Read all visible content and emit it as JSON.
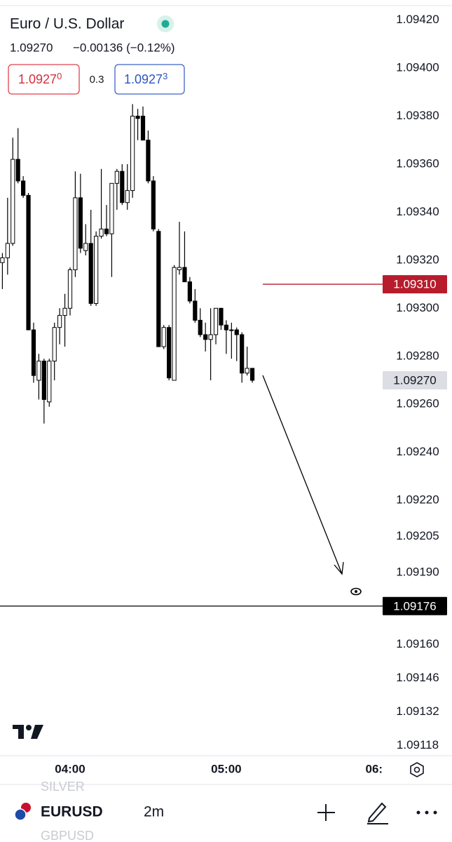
{
  "header": {
    "title": "Euro / U.S. Dollar",
    "last": "1.09270",
    "change": "−0.00136 (−0.12%)",
    "sell": {
      "price": "1.0927",
      "pip": "0"
    },
    "spread": "0.3",
    "buy": {
      "price": "1.0927",
      "pip": "3"
    }
  },
  "chart_data": {
    "type": "candlestick",
    "x": [
      "03:34",
      "03:36",
      "03:38",
      "03:40",
      "03:42",
      "03:44",
      "03:46",
      "03:48",
      "03:50",
      "03:52",
      "03:54",
      "03:56",
      "03:58",
      "04:00",
      "04:02",
      "04:04",
      "04:06",
      "04:08",
      "04:10",
      "04:12",
      "04:14",
      "04:16",
      "04:18",
      "04:20",
      "04:22",
      "04:24",
      "04:26",
      "04:28",
      "04:30",
      "04:32",
      "04:34",
      "04:36",
      "04:38",
      "04:40",
      "04:42",
      "04:44",
      "04:46",
      "04:48",
      "04:50",
      "04:52",
      "04:54",
      "04:56",
      "04:58",
      "05:00",
      "05:02",
      "05:04",
      "05:06",
      "05:08",
      "05:10"
    ],
    "open": [
      1.09319,
      1.09321,
      1.09327,
      1.09362,
      1.09353,
      1.09347,
      1.09291,
      1.0927,
      1.09278,
      1.09261,
      1.09278,
      1.09292,
      1.09297,
      1.093,
      1.09316,
      1.09346,
      1.09324,
      1.09327,
      1.09302,
      1.0933,
      1.09333,
      1.09331,
      1.09352,
      1.09357,
      1.09344,
      1.09349,
      1.0938,
      1.0938,
      1.0937,
      1.09353,
      1.09332,
      1.09284,
      1.09292,
      1.0927,
      1.09316,
      1.09317,
      1.09311,
      1.09303,
      1.09295,
      1.09289,
      1.09287,
      1.09289,
      1.093,
      1.09293,
      1.09291,
      1.09291,
      1.09289,
      1.09273,
      1.09275
    ],
    "high": [
      1.09323,
      1.09346,
      1.09371,
      1.09375,
      1.09355,
      1.09348,
      1.09294,
      1.09281,
      1.09279,
      1.09279,
      1.09294,
      1.093,
      1.09306,
      1.09317,
      1.09357,
      1.09356,
      1.09335,
      1.09341,
      1.09332,
      1.09358,
      1.09343,
      1.09352,
      1.09358,
      1.0936,
      1.0936,
      1.09385,
      1.09383,
      1.09384,
      1.09374,
      1.09355,
      1.09333,
      1.09293,
      1.09293,
      1.09318,
      1.09336,
      1.09332,
      1.09313,
      1.09308,
      1.093,
      1.09294,
      1.093,
      1.093,
      1.093,
      1.09295,
      1.09294,
      1.09292,
      1.0929,
      1.09284,
      1.09275
    ],
    "low": [
      1.09308,
      1.09314,
      1.09326,
      1.09352,
      1.09346,
      1.09291,
      1.09269,
      1.09262,
      1.09252,
      1.09259,
      1.0927,
      1.09285,
      1.09284,
      1.09297,
      1.09313,
      1.09323,
      1.09322,
      1.09301,
      1.09301,
      1.09329,
      1.0933,
      1.09313,
      1.09341,
      1.09343,
      1.09341,
      1.09346,
      1.0937,
      1.0937,
      1.09352,
      1.09332,
      1.09284,
      1.09283,
      1.0927,
      1.0927,
      1.09314,
      1.09311,
      1.09302,
      1.09294,
      1.09288,
      1.09282,
      1.0927,
      1.09285,
      1.09291,
      1.09281,
      1.09279,
      1.09278,
      1.09269,
      1.09272,
      1.09269
    ],
    "close": [
      1.09321,
      1.09327,
      1.09362,
      1.09353,
      1.09347,
      1.09291,
      1.09272,
      1.09278,
      1.09262,
      1.09278,
      1.09292,
      1.09297,
      1.093,
      1.09316,
      1.09346,
      1.09325,
      1.09327,
      1.09302,
      1.0933,
      1.09333,
      1.09331,
      1.09352,
      1.09357,
      1.09344,
      1.09349,
      1.0938,
      1.09379,
      1.0937,
      1.09353,
      1.09333,
      1.09284,
      1.09292,
      1.09271,
      1.09317,
      1.09317,
      1.09311,
      1.09303,
      1.09295,
      1.09289,
      1.09287,
      1.09289,
      1.093,
      1.09293,
      1.09291,
      1.09291,
      1.09289,
      1.09273,
      1.09275,
      1.0927
    ],
    "up_color": "#ffffff",
    "down_color": "#000000",
    "ylim": [
      1.09114,
      1.09426
    ],
    "yticks": [
      {
        "value": 1.0942,
        "label": "1.09420"
      },
      {
        "value": 1.094,
        "label": "1.09400"
      },
      {
        "value": 1.0938,
        "label": "1.09380"
      },
      {
        "value": 1.0936,
        "label": "1.09360"
      },
      {
        "value": 1.0934,
        "label": "1.09340"
      },
      {
        "value": 1.0932,
        "label": "1.09320"
      },
      {
        "value": 1.093,
        "label": "1.09300"
      },
      {
        "value": 1.0928,
        "label": "1.09280"
      },
      {
        "value": 1.0926,
        "label": "1.09260"
      },
      {
        "value": 1.0924,
        "label": "1.09240"
      },
      {
        "value": 1.0922,
        "label": "1.09220"
      },
      1.09205,
      {
        "value": 1.0919,
        "label": "1.09190"
      },
      {
        "value": 1.0916,
        "label": "1.09160"
      },
      1.09146,
      1.09132,
      1.09118
    ],
    "xticks": [
      "04:00",
      "05:00",
      {
        "value": "06:00",
        "label": "06:"
      }
    ],
    "grid": false,
    "price_lines": [
      {
        "value": 1.0931,
        "label": "1.09310",
        "color": "#b71c2c",
        "text_color": "#ffffff",
        "line": "partial"
      },
      {
        "value": 1.0927,
        "label": "1.09270",
        "color": "#dcdee3",
        "text_color": "#131722",
        "line": "none"
      },
      {
        "value": 1.09176,
        "label": "1.09176",
        "color": "#000000",
        "text_color": "#ffffff",
        "line": "full"
      }
    ]
  },
  "footer": {
    "watchlist_prev": "SILVER",
    "symbol": "EURUSD",
    "interval": "2m",
    "watchlist_next": "GBPUSD"
  }
}
